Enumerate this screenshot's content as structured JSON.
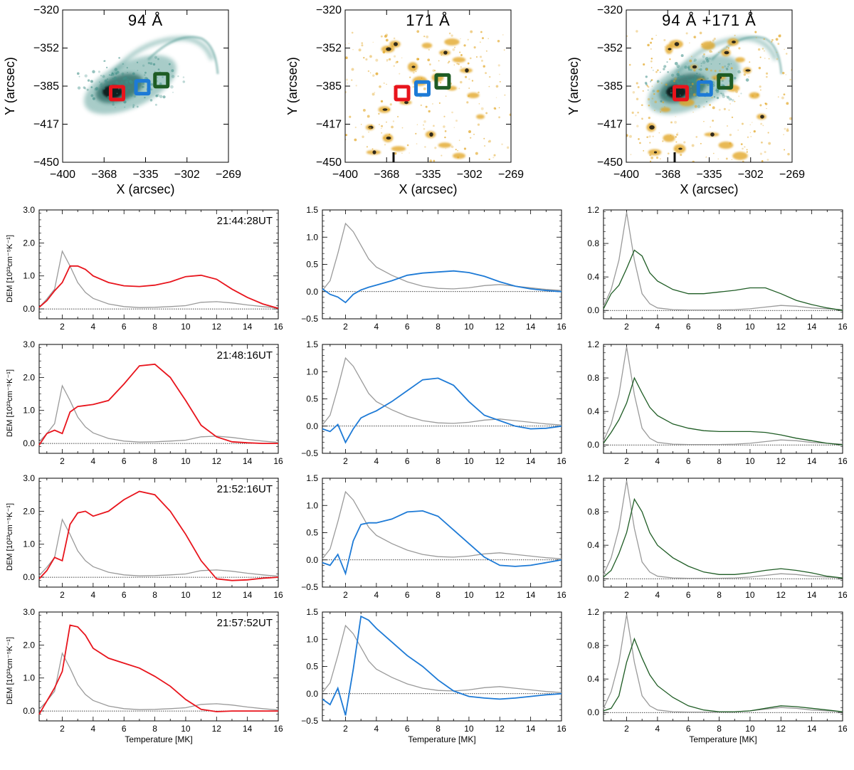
{
  "colors": {
    "red": "#e8141c",
    "blue": "#1d7ad6",
    "green": "#1e5c24",
    "gray": "#9a9a9a",
    "teal": "#3f8f87",
    "gold": "#e1a21b",
    "dark": "#111111"
  },
  "images": [
    {
      "title": "94 Å",
      "xlabel": "X (arcsec)",
      "ylabel": "Y (arcsec)",
      "xticks": [
        "−400",
        "−368",
        "−335",
        "−302",
        "−269"
      ],
      "yticks": [
        "−320",
        "−352",
        "−385",
        "−417",
        "−450"
      ],
      "xlim": [
        -400,
        -269
      ],
      "ylim": [
        -450,
        -320
      ],
      "layers": [
        "teal"
      ],
      "boxes": [
        {
          "color": "red",
          "x": -357,
          "y": -391
        },
        {
          "color": "blue",
          "x": -337,
          "y": -386
        },
        {
          "color": "green",
          "x": -322,
          "y": -380
        }
      ]
    },
    {
      "title": "171 Å",
      "xlabel": "X (arcsec)",
      "ylabel": "Y (arcsec)",
      "xticks": [
        "−400",
        "−368",
        "−335",
        "−302",
        "−269"
      ],
      "yticks": [
        "−320",
        "−352",
        "−385",
        "−417",
        "−450"
      ],
      "xlim": [
        -400,
        -269
      ],
      "ylim": [
        -450,
        -320
      ],
      "layers": [
        "gold"
      ],
      "boxes": [
        {
          "color": "red",
          "x": -355,
          "y": -391
        },
        {
          "color": "blue",
          "x": -339,
          "y": -387
        },
        {
          "color": "green",
          "x": -323,
          "y": -381
        }
      ]
    },
    {
      "title": "94 Å +171 Å",
      "xlabel": "X (arcsec)",
      "ylabel": "Y (arcsec)",
      "xticks": [
        "−400",
        "−368",
        "−335",
        "−302",
        "−269"
      ],
      "yticks": [
        "−320",
        "−352",
        "−385",
        "−417",
        "−450"
      ],
      "xlim": [
        -400,
        -269
      ],
      "ylim": [
        -450,
        -320
      ],
      "layers": [
        "teal",
        "gold"
      ],
      "boxes": [
        {
          "color": "red",
          "x": -357,
          "y": -391
        },
        {
          "color": "blue",
          "x": -338,
          "y": -387
        },
        {
          "color": "green",
          "x": -322,
          "y": -381
        }
      ]
    }
  ],
  "chart_data": {
    "type": "line",
    "x": [
      0.5,
      1,
      1.5,
      2,
      2.5,
      3,
      3.5,
      4,
      5,
      6,
      7,
      8,
      9,
      10,
      11,
      12,
      13,
      14,
      15,
      16
    ],
    "xlim": [
      0.5,
      16
    ],
    "xticks": [
      2,
      4,
      6,
      8,
      10,
      12,
      14,
      16
    ],
    "xlabel": "Temperature [MK]",
    "ylabel": "DEM [10²³cm⁻⁵K⁻¹]",
    "columns": [
      {
        "color": "red",
        "ylim": [
          -0.3,
          3.0
        ],
        "yticks": [
          "0.0",
          "1.0",
          "2.0",
          "3.0"
        ],
        "ytick_values": [
          0,
          1,
          2,
          3
        ]
      },
      {
        "color": "blue",
        "ylim": [
          -0.5,
          1.5
        ],
        "yticks": [
          "−0.5",
          "0.0",
          "0.5",
          "1.0",
          "1.5"
        ],
        "ytick_values": [
          -0.5,
          0,
          0.5,
          1,
          1.5
        ]
      },
      {
        "color": "green",
        "ylim": [
          -0.1,
          1.2
        ],
        "yticks": [
          "0.0",
          "0.4",
          "0.8",
          "1.2"
        ],
        "ytick_values": [
          0,
          0.4,
          0.8,
          1.2
        ]
      }
    ],
    "reference": [
      [
        0.05,
        0.3,
        0.6,
        1.75,
        1.3,
        0.8,
        0.5,
        0.32,
        0.15,
        0.07,
        0.04,
        0.05,
        0.07,
        0.1,
        0.2,
        0.22,
        0.18,
        0.12,
        0.07,
        0.03
      ],
      [
        0.02,
        0.2,
        0.7,
        1.25,
        1.1,
        0.85,
        0.6,
        0.45,
        0.3,
        0.18,
        0.1,
        0.06,
        0.05,
        0.07,
        0.11,
        0.13,
        0.1,
        0.07,
        0.04,
        0.02
      ],
      [
        0.05,
        0.25,
        0.6,
        1.17,
        0.6,
        0.2,
        0.08,
        0.03,
        0.01,
        0.005,
        0.005,
        0.005,
        0.01,
        0.02,
        0.04,
        0.06,
        0.05,
        0.03,
        0.02,
        0.01
      ]
    ],
    "rows": [
      {
        "time": "21:44:28UT",
        "series": [
          [
            0.05,
            0.25,
            0.55,
            0.8,
            1.3,
            1.3,
            1.2,
            1.0,
            0.8,
            0.7,
            0.68,
            0.72,
            0.82,
            0.98,
            1.02,
            0.9,
            0.6,
            0.35,
            0.15,
            0.02
          ],
          [
            0.05,
            -0.05,
            -0.1,
            -0.2,
            -0.05,
            0.03,
            0.08,
            0.12,
            0.2,
            0.3,
            0.34,
            0.36,
            0.38,
            0.35,
            0.28,
            0.18,
            0.1,
            0.05,
            0.02,
            0.0
          ],
          [
            0.02,
            0.2,
            0.3,
            0.5,
            0.72,
            0.65,
            0.45,
            0.35,
            0.25,
            0.2,
            0.2,
            0.22,
            0.24,
            0.27,
            0.27,
            0.2,
            0.12,
            0.07,
            0.03,
            0.0
          ]
        ]
      },
      {
        "time": "21:48:16UT",
        "series": [
          [
            -0.05,
            0.3,
            0.4,
            0.3,
            0.95,
            1.12,
            1.15,
            1.18,
            1.3,
            1.8,
            2.35,
            2.4,
            2.0,
            1.3,
            0.55,
            0.2,
            0.05,
            0.02,
            0.0,
            0.0
          ],
          [
            -0.05,
            -0.1,
            0.03,
            -0.3,
            -0.05,
            0.15,
            0.22,
            0.28,
            0.45,
            0.65,
            0.85,
            0.88,
            0.75,
            0.45,
            0.2,
            0.1,
            0.0,
            -0.05,
            -0.04,
            0.0
          ],
          [
            0.02,
            0.15,
            0.3,
            0.5,
            0.8,
            0.62,
            0.45,
            0.35,
            0.25,
            0.2,
            0.17,
            0.16,
            0.16,
            0.16,
            0.15,
            0.12,
            0.08,
            0.05,
            0.02,
            0.0
          ]
        ]
      },
      {
        "time": "21:52:16UT",
        "series": [
          [
            -0.05,
            0.2,
            0.6,
            0.5,
            1.6,
            1.95,
            2.0,
            1.85,
            2.0,
            2.35,
            2.6,
            2.5,
            2.0,
            1.3,
            0.5,
            -0.05,
            -0.1,
            -0.08,
            -0.03,
            0.0
          ],
          [
            -0.05,
            -0.1,
            0.1,
            -0.25,
            0.35,
            0.65,
            0.68,
            0.68,
            0.75,
            0.88,
            0.9,
            0.8,
            0.55,
            0.3,
            0.05,
            -0.1,
            -0.12,
            -0.1,
            -0.05,
            0.0
          ],
          [
            0.02,
            0.1,
            0.3,
            0.55,
            0.95,
            0.8,
            0.55,
            0.4,
            0.25,
            0.15,
            0.08,
            0.05,
            0.05,
            0.07,
            0.1,
            0.12,
            0.1,
            0.07,
            0.03,
            0.01
          ]
        ]
      },
      {
        "time": "21:57:52UT",
        "series": [
          [
            -0.1,
            0.3,
            0.7,
            1.2,
            2.6,
            2.55,
            2.3,
            1.9,
            1.6,
            1.45,
            1.3,
            1.05,
            0.75,
            0.35,
            0.05,
            -0.02,
            0.0,
            0.0,
            0.0,
            0.0
          ],
          [
            -0.1,
            -0.2,
            0.1,
            -0.4,
            0.45,
            1.42,
            1.35,
            1.2,
            0.95,
            0.7,
            0.5,
            0.25,
            0.05,
            -0.05,
            -0.08,
            -0.1,
            -0.08,
            -0.05,
            -0.02,
            0.0
          ],
          [
            0.02,
            0.05,
            0.2,
            0.6,
            0.88,
            0.65,
            0.45,
            0.32,
            0.18,
            0.08,
            0.03,
            0.01,
            0.01,
            0.02,
            0.05,
            0.08,
            0.07,
            0.05,
            0.03,
            0.01
          ]
        ]
      }
    ]
  }
}
